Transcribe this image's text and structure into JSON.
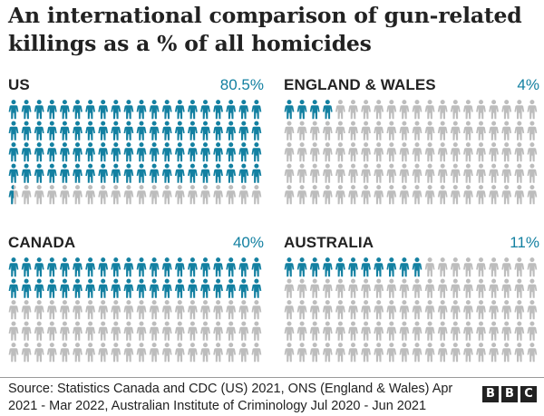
{
  "title": "An international comparison of gun-related killings as a % of all homicides",
  "chart_data": {
    "type": "waffle",
    "units_per_panel": 100,
    "grid_columns": 20,
    "grid_rows": 5,
    "colors": {
      "filled": "#1380a1",
      "empty": "#bdbdbd"
    },
    "panels": [
      {
        "name": "US",
        "value_label": "80.5%",
        "value": 80.5
      },
      {
        "name": "ENGLAND & WALES",
        "value_label": "4%",
        "value": 4
      },
      {
        "name": "CANADA",
        "value_label": "40%",
        "value": 40
      },
      {
        "name": "AUSTRALIA",
        "value_label": "11%",
        "value": 11
      }
    ]
  },
  "source": "Source: Statistics Canada and CDC (US) 2021, ONS (England & Wales) Apr 2021 - Mar 2022, Australian Institute of Criminology Jul 2020 - Jun 2021",
  "logo": {
    "letters": [
      "B",
      "B",
      "C"
    ]
  }
}
